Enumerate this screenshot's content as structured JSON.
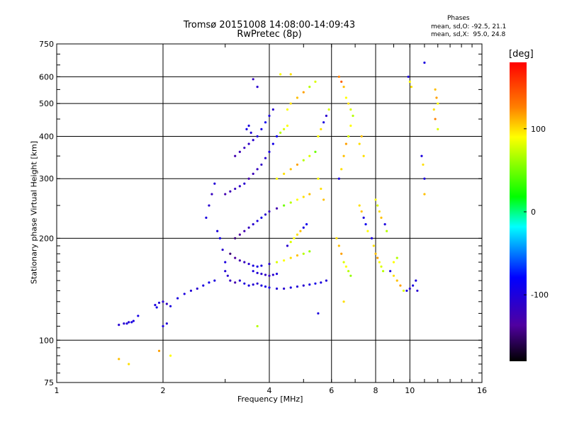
{
  "chart_data": {
    "type": "scatter",
    "title": "Tromsø 20151008 14:08:00-14:09:43",
    "subtitle": "RwPretec (8p)",
    "xlabel": "Frequency [MHz]",
    "ylabel": "Stationary phase Virtual Height [km]",
    "x_scale": "log",
    "y_scale": "log",
    "xlim": [
      1,
      16
    ],
    "ylim": [
      75,
      750
    ],
    "x_ticks": [
      "1",
      "2",
      "4",
      "6",
      "8",
      "10",
      "16"
    ],
    "x_tick_values": [
      1,
      2,
      4,
      6,
      8,
      10,
      16
    ],
    "y_ticks": [
      "75",
      "100",
      "200",
      "300",
      "400",
      "500",
      "600",
      "750"
    ],
    "y_tick_values": [
      75,
      100,
      200,
      300,
      400,
      500,
      600,
      750
    ],
    "grid": true,
    "colorbar": {
      "label": "[deg]",
      "ticks": [
        "100",
        "0",
        "-100"
      ],
      "tick_values": [
        100,
        0,
        -100
      ],
      "range": [
        -180,
        180
      ]
    },
    "phases": {
      "title": "Phases",
      "o_mode": "mean, sd,O: -92.5, 21.1",
      "x_mode": "mean, sd,X:  95.0, 24.8"
    },
    "points": [
      [
        1.55,
        112
      ],
      [
        1.6,
        113
      ],
      [
        1.65,
        114
      ],
      [
        1.7,
        118
      ],
      [
        1.5,
        111
      ],
      [
        1.58,
        112
      ],
      [
        1.63,
        113
      ],
      [
        1.9,
        127
      ],
      [
        1.95,
        129
      ],
      [
        2.0,
        130
      ],
      [
        2.05,
        128
      ],
      [
        2.1,
        126
      ],
      [
        1.92,
        125
      ],
      [
        2.0,
        110
      ],
      [
        2.05,
        112
      ],
      [
        2.2,
        133
      ],
      [
        2.3,
        137
      ],
      [
        2.4,
        140
      ],
      [
        2.5,
        142
      ],
      [
        2.6,
        145
      ],
      [
        2.7,
        148
      ],
      [
        2.8,
        150
      ],
      [
        2.65,
        230
      ],
      [
        2.7,
        250
      ],
      [
        2.75,
        270
      ],
      [
        2.8,
        290
      ],
      [
        2.85,
        210
      ],
      [
        2.9,
        200
      ],
      [
        2.95,
        185
      ],
      [
        3.0,
        170
      ],
      [
        3.0,
        160
      ],
      [
        3.05,
        155
      ],
      [
        3.1,
        150
      ],
      [
        3.2,
        148
      ],
      [
        3.3,
        150
      ],
      [
        3.4,
        147
      ],
      [
        3.5,
        145
      ],
      [
        3.6,
        146
      ],
      [
        3.7,
        147
      ],
      [
        3.8,
        145
      ],
      [
        3.9,
        144
      ],
      [
        4.0,
        143
      ],
      [
        4.2,
        142
      ],
      [
        4.4,
        142
      ],
      [
        4.6,
        143
      ],
      [
        4.8,
        144
      ],
      [
        5.0,
        145
      ],
      [
        5.2,
        146
      ],
      [
        5.4,
        147
      ],
      [
        5.6,
        148
      ],
      [
        5.8,
        150
      ],
      [
        3.0,
        270
      ],
      [
        3.1,
        275
      ],
      [
        3.2,
        280
      ],
      [
        3.3,
        285
      ],
      [
        3.4,
        290
      ],
      [
        3.5,
        300
      ],
      [
        3.6,
        310
      ],
      [
        3.7,
        320
      ],
      [
        3.8,
        330
      ],
      [
        3.9,
        345
      ],
      [
        4.0,
        360
      ],
      [
        4.1,
        380
      ],
      [
        4.2,
        400
      ],
      [
        4.3,
        410
      ],
      [
        4.4,
        420
      ],
      [
        4.5,
        430
      ],
      [
        3.2,
        350
      ],
      [
        3.3,
        360
      ],
      [
        3.4,
        370
      ],
      [
        3.5,
        380
      ],
      [
        3.6,
        390
      ],
      [
        3.7,
        400
      ],
      [
        3.8,
        420
      ],
      [
        3.9,
        440
      ],
      [
        4.0,
        460
      ],
      [
        4.1,
        480
      ],
      [
        3.6,
        590
      ],
      [
        3.7,
        560
      ],
      [
        3.5,
        430
      ],
      [
        3.45,
        420
      ],
      [
        3.55,
        410
      ],
      [
        3.2,
        200
      ],
      [
        3.3,
        205
      ],
      [
        3.4,
        210
      ],
      [
        3.5,
        215
      ],
      [
        3.6,
        220
      ],
      [
        3.7,
        225
      ],
      [
        3.8,
        230
      ],
      [
        3.9,
        235
      ],
      [
        4.0,
        240
      ],
      [
        4.2,
        245
      ],
      [
        4.4,
        250
      ],
      [
        4.6,
        255
      ],
      [
        4.8,
        260
      ],
      [
        5.0,
        265
      ],
      [
        5.2,
        270
      ],
      [
        3.1,
        180
      ],
      [
        3.2,
        175
      ],
      [
        3.3,
        172
      ],
      [
        3.4,
        170
      ],
      [
        3.5,
        168
      ],
      [
        3.6,
        166
      ],
      [
        3.7,
        165
      ],
      [
        3.8,
        166
      ],
      [
        4.0,
        168
      ],
      [
        4.2,
        170
      ],
      [
        4.4,
        172
      ],
      [
        4.6,
        175
      ],
      [
        4.8,
        178
      ],
      [
        5.0,
        180
      ],
      [
        5.2,
        183
      ],
      [
        3.6,
        160
      ],
      [
        3.7,
        158
      ],
      [
        3.8,
        157
      ],
      [
        3.9,
        156
      ],
      [
        4.0,
        155
      ],
      [
        4.1,
        156
      ],
      [
        4.2,
        157
      ],
      [
        4.5,
        190
      ],
      [
        4.6,
        195
      ],
      [
        4.7,
        200
      ],
      [
        4.8,
        205
      ],
      [
        4.9,
        210
      ],
      [
        5.0,
        215
      ],
      [
        5.1,
        220
      ],
      [
        4.2,
        300
      ],
      [
        4.4,
        310
      ],
      [
        4.6,
        320
      ],
      [
        4.8,
        330
      ],
      [
        5.0,
        340
      ],
      [
        5.2,
        350
      ],
      [
        5.4,
        360
      ],
      [
        4.5,
        480
      ],
      [
        4.6,
        500
      ],
      [
        4.8,
        520
      ],
      [
        5.0,
        540
      ],
      [
        5.2,
        560
      ],
      [
        5.4,
        580
      ],
      [
        4.3,
        610
      ],
      [
        5.5,
        400
      ],
      [
        5.6,
        420
      ],
      [
        5.7,
        440
      ],
      [
        5.8,
        460
      ],
      [
        5.9,
        480
      ],
      [
        5.5,
        300
      ],
      [
        5.6,
        280
      ],
      [
        5.7,
        260
      ],
      [
        6.2,
        200
      ],
      [
        6.3,
        190
      ],
      [
        6.4,
        180
      ],
      [
        6.5,
        170
      ],
      [
        6.6,
        165
      ],
      [
        6.7,
        160
      ],
      [
        6.8,
        155
      ],
      [
        6.3,
        300
      ],
      [
        6.4,
        320
      ],
      [
        6.5,
        350
      ],
      [
        6.6,
        380
      ],
      [
        6.7,
        400
      ],
      [
        6.8,
        430
      ],
      [
        6.9,
        460
      ],
      [
        6.3,
        600
      ],
      [
        6.4,
        580
      ],
      [
        6.5,
        560
      ],
      [
        6.6,
        520
      ],
      [
        6.7,
        500
      ],
      [
        6.8,
        480
      ],
      [
        7.2,
        250
      ],
      [
        7.3,
        240
      ],
      [
        7.4,
        230
      ],
      [
        7.5,
        220
      ],
      [
        7.6,
        210
      ],
      [
        7.2,
        380
      ],
      [
        7.3,
        400
      ],
      [
        7.4,
        350
      ],
      [
        7.8,
        200
      ],
      [
        7.9,
        190
      ],
      [
        8.0,
        180
      ],
      [
        8.1,
        175
      ],
      [
        8.2,
        170
      ],
      [
        8.3,
        165
      ],
      [
        8.4,
        160
      ],
      [
        8.0,
        260
      ],
      [
        8.1,
        250
      ],
      [
        8.2,
        240
      ],
      [
        8.3,
        230
      ],
      [
        8.5,
        220
      ],
      [
        8.6,
        210
      ],
      [
        8.8,
        160
      ],
      [
        9.0,
        155
      ],
      [
        9.2,
        150
      ],
      [
        9.4,
        145
      ],
      [
        9.6,
        140
      ],
      [
        9.0,
        170
      ],
      [
        9.2,
        175
      ],
      [
        9.8,
        140
      ],
      [
        10.0,
        142
      ],
      [
        10.2,
        145
      ],
      [
        9.9,
        600
      ],
      [
        10.0,
        580
      ],
      [
        10.1,
        560
      ],
      [
        10.4,
        150
      ],
      [
        10.5,
        140
      ],
      [
        10.8,
        350
      ],
      [
        10.9,
        330
      ],
      [
        11.0,
        300
      ],
      [
        11.0,
        270
      ],
      [
        11.0,
        660
      ],
      [
        11.8,
        550
      ],
      [
        11.9,
        520
      ],
      [
        12.0,
        500
      ],
      [
        11.7,
        480
      ],
      [
        11.8,
        450
      ],
      [
        12.0,
        420
      ],
      [
        1.5,
        88
      ],
      [
        1.6,
        85
      ],
      [
        1.95,
        93
      ],
      [
        2.1,
        90
      ],
      [
        4.6,
        610
      ],
      [
        5.5,
        120
      ],
      [
        6.5,
        130
      ],
      [
        3.7,
        110
      ]
    ],
    "point_phases": [
      -110,
      -105,
      -100,
      -95,
      -108,
      -102,
      -98,
      -100,
      -105,
      -110,
      -115,
      -100,
      -95,
      -100,
      -105,
      -100,
      -100,
      -105,
      -110,
      -100,
      -95,
      -100,
      -100,
      -110,
      -120,
      -105,
      -100,
      -95,
      -110,
      -100,
      -105,
      -110,
      -120,
      -130,
      -110,
      -100,
      -100,
      -105,
      -110,
      -100,
      -95,
      -100,
      -105,
      -110,
      -100,
      -105,
      -110,
      -100,
      -95,
      -100,
      -105,
      -130,
      -125,
      -120,
      -115,
      -110,
      -130,
      -125,
      -120,
      -115,
      -110,
      -100,
      -95,
      -90,
      80,
      90,
      100,
      -130,
      -125,
      -120,
      -115,
      -110,
      -100,
      -95,
      -90,
      -100,
      -110,
      -120,
      -110,
      -100,
      -95,
      -105,
      -150,
      -140,
      -130,
      -120,
      -110,
      -100,
      -95,
      -110,
      -120,
      -130,
      60,
      80,
      100,
      110,
      120,
      -150,
      -140,
      -130,
      -120,
      -110,
      -100,
      -95,
      -100,
      -110,
      90,
      100,
      110,
      120,
      80,
      70,
      -100,
      -105,
      -110,
      -115,
      -120,
      -110,
      -100,
      -110,
      90,
      100,
      110,
      120,
      -100,
      -90,
      100,
      110,
      120,
      130,
      80,
      90,
      60,
      100,
      110,
      120,
      130,
      80,
      90,
      100,
      100,
      110,
      -100,
      -110,
      90,
      100,
      110,
      120,
      110,
      120,
      130,
      90,
      100,
      80,
      70,
      -100,
      110,
      120,
      130,
      90,
      100,
      80,
      140,
      150,
      120,
      100,
      110,
      90,
      110,
      120,
      -100,
      -90,
      100,
      110,
      120,
      110,
      -100,
      110,
      120,
      130,
      100,
      90,
      80,
      100,
      90,
      110,
      120,
      -100,
      80,
      -100,
      110,
      120,
      130,
      90,
      100,
      80,
      -100,
      -110,
      -100,
      -100,
      100,
      110,
      -100,
      -110,
      -100,
      110,
      -100,
      120,
      -100,
      120,
      130,
      100,
      110,
      140,
      90,
      120,
      110,
      130,
      100,
      110,
      -100,
      110,
      80
    ]
  }
}
